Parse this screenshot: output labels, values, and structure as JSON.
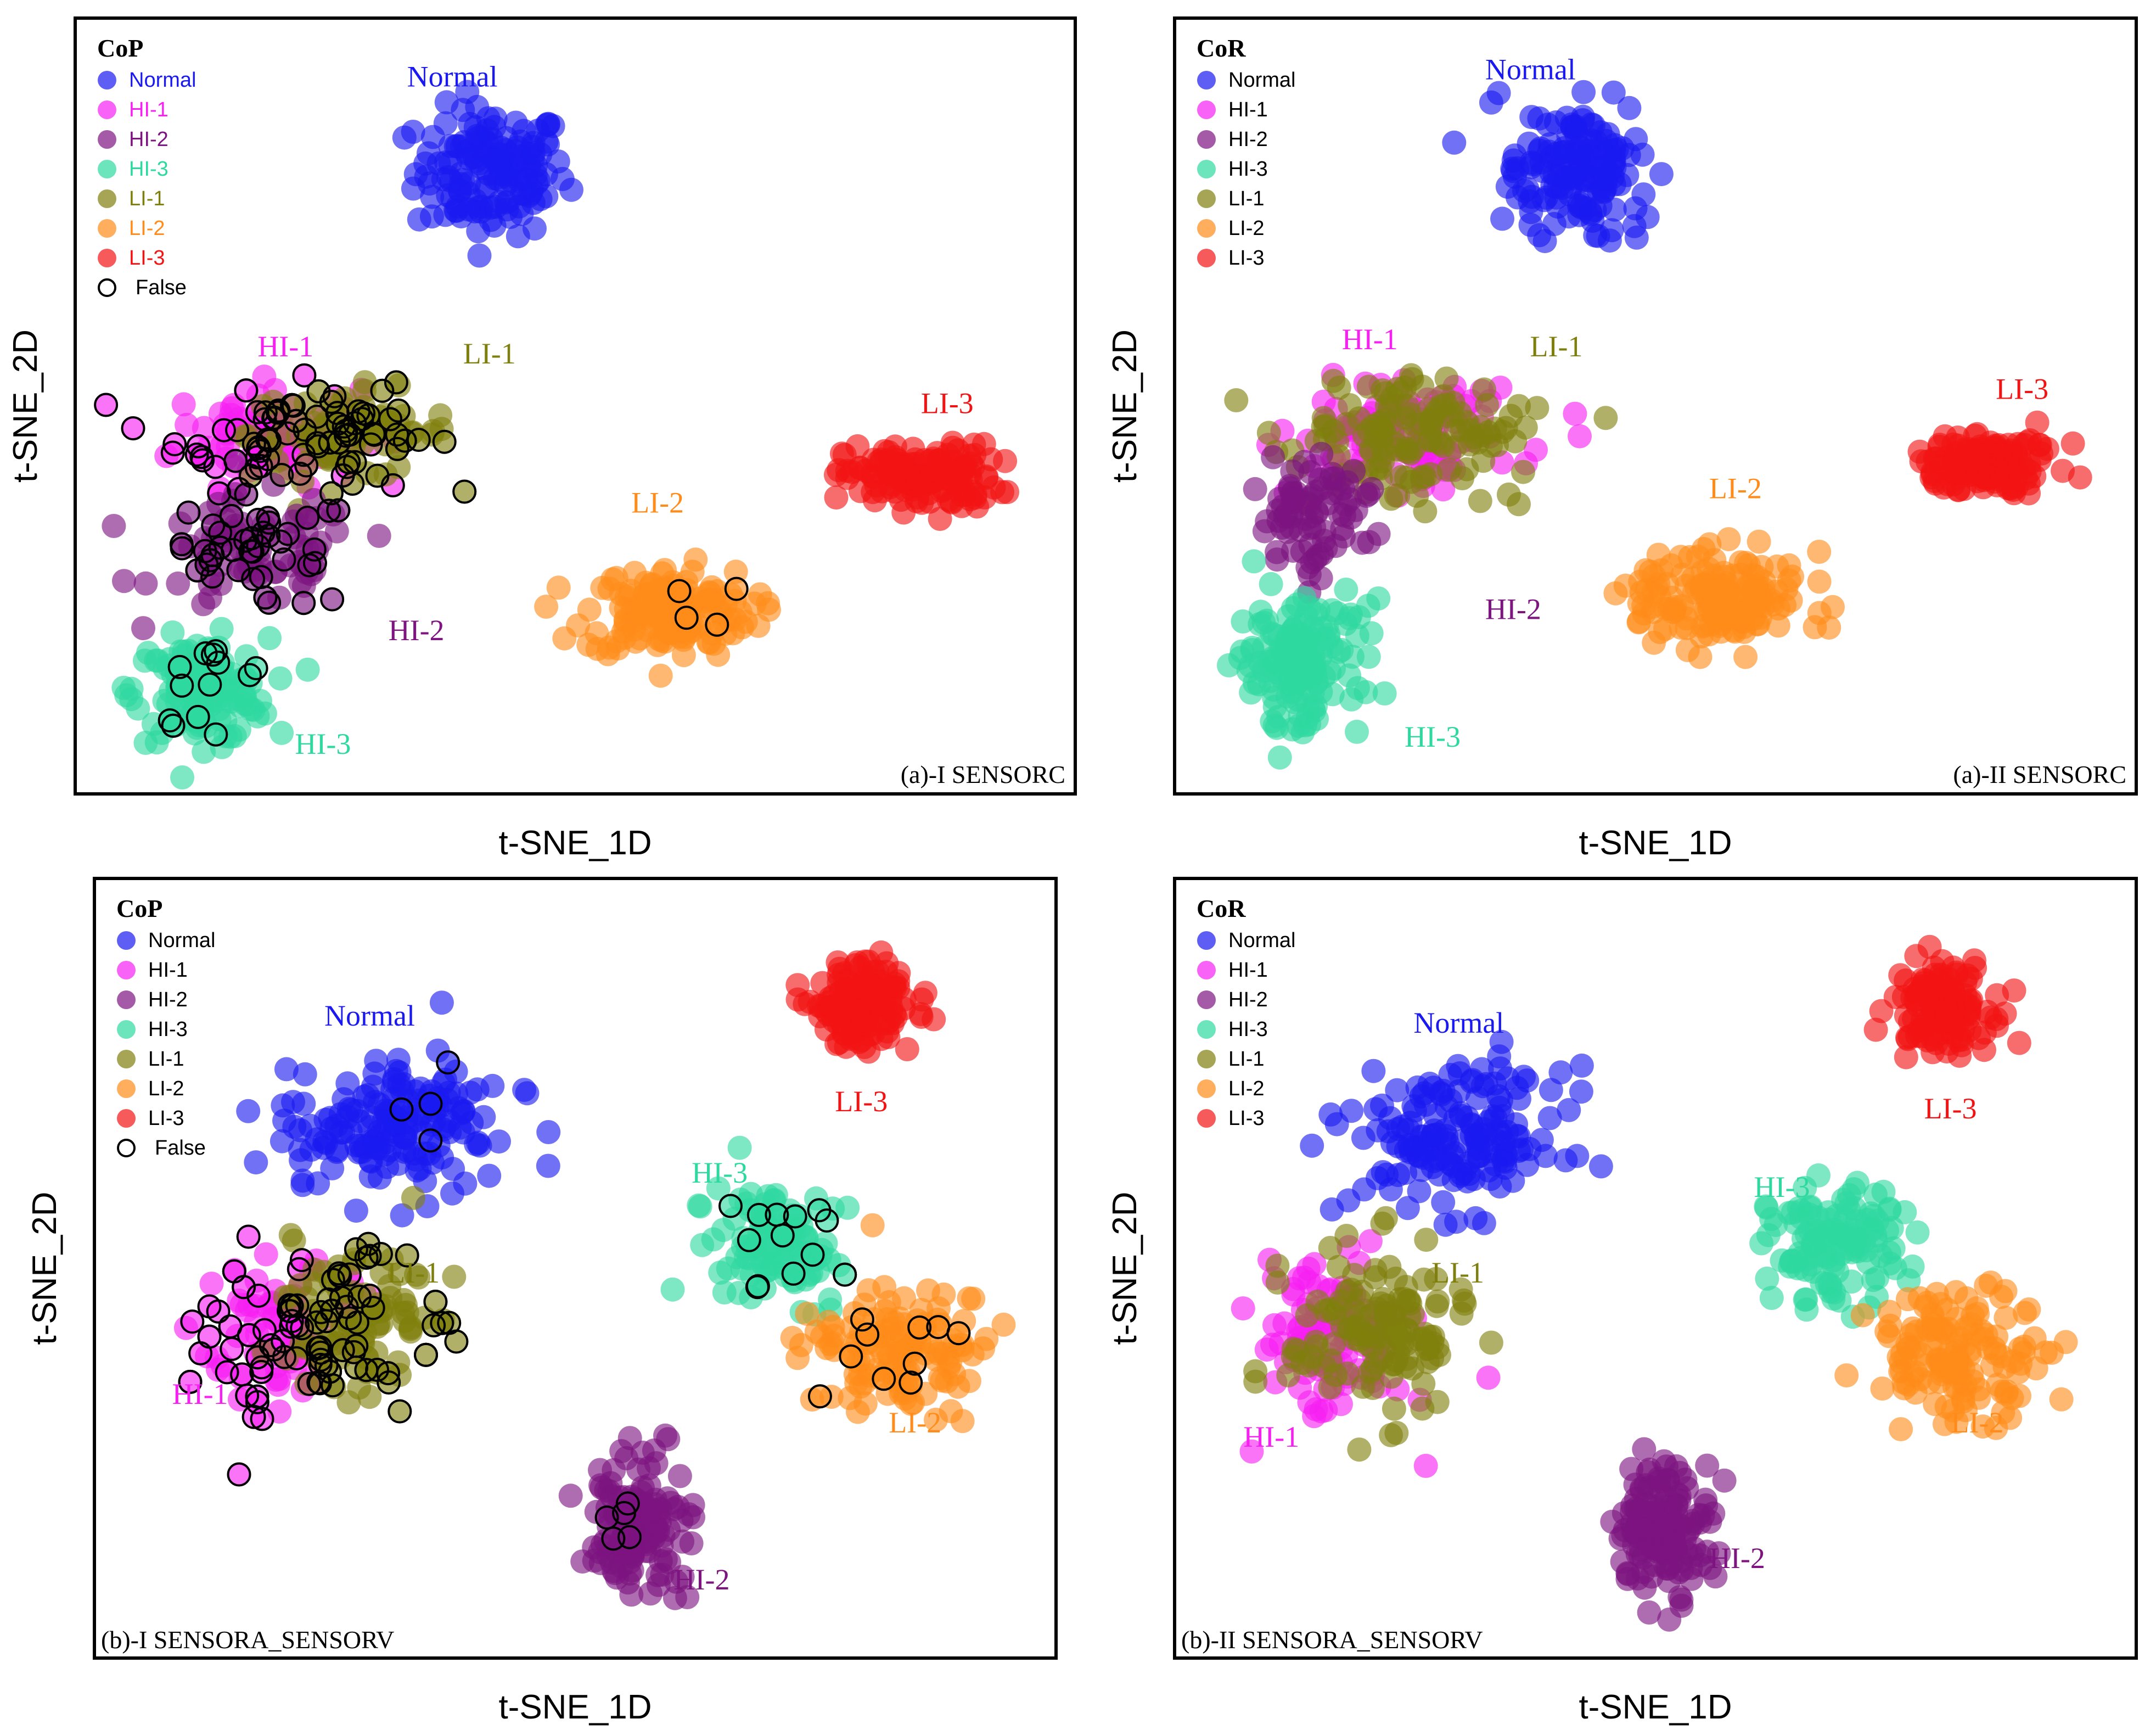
{
  "colors": {
    "Normal": "#1a1af0",
    "HI-1": "#f71ff2",
    "HI-2": "#7d1480",
    "HI-3": "#2ed9a0",
    "LI-1": "#7f7f0d",
    "LI-2": "#ff8c1a",
    "LI-3": "#f21414",
    "False": "#000000"
  },
  "chart_data": [
    {
      "id": "a-I",
      "type": "scatter",
      "caption": "(a)-I SENSORC",
      "legend_title": "CoP",
      "legend_text_colored": true,
      "legend": [
        "Normal",
        "HI-1",
        "HI-2",
        "HI-3",
        "LI-1",
        "LI-2",
        "LI-3",
        "False"
      ],
      "xlabel": "t-SNE_1D",
      "ylabel": "t-SNE_2D",
      "xlim": [
        0,
        100
      ],
      "ylim": [
        0,
        100
      ],
      "clusters": [
        {
          "label": "Normal",
          "cx": 41,
          "cy": 83,
          "rx": 9,
          "ry": 10,
          "n": 150
        },
        {
          "label": "HI-1",
          "cx": 17,
          "cy": 46,
          "rx": 11,
          "ry": 8,
          "n": 110
        },
        {
          "label": "LI-1",
          "cx": 26,
          "cy": 46,
          "rx": 12,
          "ry": 7,
          "n": 100
        },
        {
          "label": "HI-2",
          "cx": 16,
          "cy": 29,
          "rx": 12,
          "ry": 9,
          "n": 110
        },
        {
          "label": "HI-3",
          "cx": 10,
          "cy": 10,
          "rx": 8,
          "ry": 8,
          "n": 150
        },
        {
          "label": "LI-2",
          "cx": 60,
          "cy": 21,
          "rx": 10,
          "ry": 7,
          "n": 160
        },
        {
          "label": "LI-3",
          "cx": 87,
          "cy": 40,
          "rx": 9,
          "ry": 5,
          "n": 150
        }
      ],
      "false_marks": [
        {
          "label": "HI-1",
          "n": 60
        },
        {
          "label": "LI-1",
          "n": 45
        },
        {
          "label": "HI-2",
          "n": 50
        },
        {
          "label": "HI-3",
          "n": 14
        },
        {
          "label": "LI-2",
          "n": 4
        }
      ],
      "cluster_labels": [
        {
          "text": "Normal",
          "color_key": "Normal",
          "x": 32,
          "y": 95
        },
        {
          "text": "HI-1",
          "color_key": "HI-1",
          "x": 16,
          "y": 57
        },
        {
          "text": "LI-1",
          "color_key": "LI-1",
          "x": 38,
          "y": 56
        },
        {
          "text": "LI-3",
          "color_key": "LI-3",
          "x": 87,
          "y": 49
        },
        {
          "text": "LI-2",
          "color_key": "LI-2",
          "x": 56,
          "y": 35
        },
        {
          "text": "HI-2",
          "color_key": "HI-2",
          "x": 30,
          "y": 17
        },
        {
          "text": "HI-3",
          "color_key": "HI-3",
          "x": 20,
          "y": 1
        }
      ]
    },
    {
      "id": "a-II",
      "type": "scatter",
      "caption": "(a)-II SENSORC",
      "legend_title": "CoR",
      "legend_text_colored": false,
      "legend": [
        "Normal",
        "HI-1",
        "HI-2",
        "HI-3",
        "LI-1",
        "LI-2",
        "LI-3"
      ],
      "xlabel": "t-SNE_1D",
      "ylabel": "t-SNE_2D",
      "xlim": [
        0,
        100
      ],
      "ylim": [
        0,
        100
      ],
      "clusters": [
        {
          "label": "Normal",
          "cx": 41,
          "cy": 83,
          "rx": 9,
          "ry": 10,
          "n": 150
        },
        {
          "label": "HI-1",
          "cx": 22,
          "cy": 46,
          "rx": 13,
          "ry": 9,
          "n": 120
        },
        {
          "label": "LI-1",
          "cx": 23,
          "cy": 46,
          "rx": 14,
          "ry": 9,
          "n": 130
        },
        {
          "label": "HI-2",
          "cx": 12,
          "cy": 34,
          "rx": 8,
          "ry": 10,
          "n": 80
        },
        {
          "label": "HI-3",
          "cx": 10,
          "cy": 14,
          "rx": 8,
          "ry": 10,
          "n": 160
        },
        {
          "label": "LI-2",
          "cx": 57,
          "cy": 23,
          "rx": 10,
          "ry": 7,
          "n": 160
        },
        {
          "label": "LI-3",
          "cx": 87,
          "cy": 42,
          "rx": 9,
          "ry": 5,
          "n": 150
        }
      ],
      "false_marks": [],
      "cluster_labels": [
        {
          "text": "Normal",
          "color_key": "Normal",
          "x": 31,
          "y": 96
        },
        {
          "text": "HI-1",
          "color_key": "HI-1",
          "x": 15,
          "y": 58
        },
        {
          "text": "LI-1",
          "color_key": "LI-1",
          "x": 36,
          "y": 57
        },
        {
          "text": "LI-3",
          "color_key": "LI-3",
          "x": 88,
          "y": 51
        },
        {
          "text": "LI-2",
          "color_key": "LI-2",
          "x": 56,
          "y": 37
        },
        {
          "text": "HI-2",
          "color_key": "HI-2",
          "x": 31,
          "y": 20
        },
        {
          "text": "HI-3",
          "color_key": "HI-3",
          "x": 22,
          "y": 2
        }
      ]
    },
    {
      "id": "b-I",
      "type": "scatter",
      "caption": "(b)-I SENSORA_SENSORV",
      "legend_title": "CoP",
      "legend_text_colored": false,
      "legend": [
        "Normal",
        "HI-1",
        "HI-2",
        "HI-3",
        "LI-1",
        "LI-2",
        "LI-3",
        "False"
      ],
      "xlabel": "t-SNE_1D",
      "ylabel": "t-SNE_2D",
      "xlim": [
        0,
        100
      ],
      "ylim": [
        0,
        100
      ],
      "clusters": [
        {
          "label": "LI-3",
          "cx": 82,
          "cy": 87,
          "rx": 6,
          "ry": 7,
          "n": 140
        },
        {
          "label": "Normal",
          "cx": 30,
          "cy": 70,
          "rx": 13,
          "ry": 10,
          "n": 170
        },
        {
          "label": "HI-1",
          "cx": 17,
          "cy": 41,
          "rx": 9,
          "ry": 13,
          "n": 110
        },
        {
          "label": "LI-1",
          "cx": 25,
          "cy": 42,
          "rx": 11,
          "ry": 12,
          "n": 120
        },
        {
          "label": "HI-3",
          "cx": 72,
          "cy": 54,
          "rx": 8,
          "ry": 9,
          "n": 120
        },
        {
          "label": "LI-2",
          "cx": 86,
          "cy": 39,
          "rx": 11,
          "ry": 10,
          "n": 140
        },
        {
          "label": "HI-2",
          "cx": 57,
          "cy": 14,
          "rx": 6,
          "ry": 10,
          "n": 150
        }
      ],
      "false_marks": [
        {
          "label": "HI-1",
          "n": 60
        },
        {
          "label": "LI-1",
          "n": 50
        },
        {
          "label": "HI-3",
          "n": 14
        },
        {
          "label": "LI-2",
          "n": 10
        },
        {
          "label": "HI-2",
          "n": 5
        },
        {
          "label": "Normal",
          "n": 4
        }
      ],
      "cluster_labels": [
        {
          "text": "Normal",
          "color_key": "Normal",
          "x": 22,
          "y": 84
        },
        {
          "text": "LI-3",
          "color_key": "LI-3",
          "x": 79,
          "y": 72
        },
        {
          "text": "HI-3",
          "color_key": "HI-3",
          "x": 63,
          "y": 62
        },
        {
          "text": "LI-1",
          "color_key": "LI-1",
          "x": 29,
          "y": 48
        },
        {
          "text": "HI-1",
          "color_key": "HI-1",
          "x": 5,
          "y": 31
        },
        {
          "text": "LI-2",
          "color_key": "LI-2",
          "x": 85,
          "y": 27
        },
        {
          "text": "HI-2",
          "color_key": "HI-2",
          "x": 61,
          "y": 5
        }
      ]
    },
    {
      "id": "b-II",
      "type": "scatter",
      "caption": "(b)-II SENSORA_SENSORV",
      "legend_title": "CoR",
      "legend_text_colored": false,
      "legend": [
        "Normal",
        "HI-1",
        "HI-2",
        "HI-3",
        "LI-1",
        "LI-2",
        "LI-3"
      ],
      "xlabel": "t-SNE_1D",
      "ylabel": "t-SNE_2D",
      "xlim": [
        0,
        100
      ],
      "ylim": [
        0,
        100
      ],
      "clusters": [
        {
          "label": "LI-3",
          "cx": 82,
          "cy": 87,
          "rx": 6,
          "ry": 7,
          "n": 140
        },
        {
          "label": "Normal",
          "cx": 28,
          "cy": 68,
          "rx": 13,
          "ry": 11,
          "n": 170
        },
        {
          "label": "HI-1",
          "cx": 14,
          "cy": 40,
          "rx": 9,
          "ry": 13,
          "n": 110
        },
        {
          "label": "LI-1",
          "cx": 19,
          "cy": 41,
          "rx": 11,
          "ry": 13,
          "n": 130
        },
        {
          "label": "HI-3",
          "cx": 70,
          "cy": 53,
          "rx": 8,
          "ry": 9,
          "n": 130
        },
        {
          "label": "LI-2",
          "cx": 84,
          "cy": 38,
          "rx": 11,
          "ry": 10,
          "n": 140
        },
        {
          "label": "HI-2",
          "cx": 51,
          "cy": 14,
          "rx": 6,
          "ry": 10,
          "n": 150
        }
      ],
      "false_marks": [],
      "cluster_labels": [
        {
          "text": "Normal",
          "color_key": "Normal",
          "x": 23,
          "y": 83
        },
        {
          "text": "LI-3",
          "color_key": "LI-3",
          "x": 80,
          "y": 71
        },
        {
          "text": "HI-3",
          "color_key": "HI-3",
          "x": 61,
          "y": 60
        },
        {
          "text": "LI-1",
          "color_key": "LI-1",
          "x": 25,
          "y": 48
        },
        {
          "text": "HI-1",
          "color_key": "HI-1",
          "x": 4,
          "y": 25
        },
        {
          "text": "LI-2",
          "color_key": "LI-2",
          "x": 83,
          "y": 27
        },
        {
          "text": "HI-2",
          "color_key": "HI-2",
          "x": 56,
          "y": 8
        }
      ]
    }
  ]
}
